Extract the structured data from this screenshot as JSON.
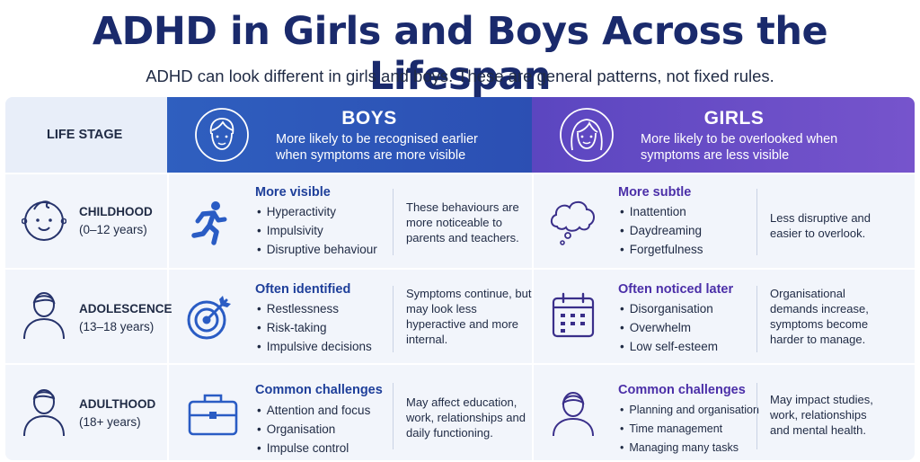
{
  "title": "ADHD in Girls and Boys Across the Lifespan",
  "subtitle": "ADHD can look different in girls and boys. These are general patterns, not fixed rules.",
  "header": {
    "life_stage": "LIFE STAGE",
    "boys": {
      "name": "BOYS",
      "desc": "More likely to be recognised earlier when symptoms are more visible",
      "icon": "boy-face-icon"
    },
    "girls": {
      "name": "GIRLS",
      "desc": "More likely to be overlooked when symptoms are less visible",
      "icon": "girl-face-icon"
    }
  },
  "rows": [
    {
      "stage": "CHILDHOOD",
      "years": "(0–12 years)",
      "icon": "baby-icon",
      "boys": {
        "icon": "running-person-icon",
        "heading": "More visible",
        "bullets": [
          "Hyperactivity",
          "Impulsivity",
          "Disruptive behaviour"
        ],
        "note": "These behaviours are more noticeable to parents and teachers."
      },
      "girls": {
        "icon": "thought-cloud-icon",
        "heading": "More subtle",
        "bullets": [
          "Inattention",
          "Daydreaming",
          "Forgetfulness"
        ],
        "note": "Less disruptive and easier to overlook."
      }
    },
    {
      "stage": "ADOLESCENCE",
      "years": "(13–18 years)",
      "icon": "teen-icon",
      "boys": {
        "icon": "target-icon",
        "heading": "Often identified",
        "bullets": [
          "Restlessness",
          "Risk-taking",
          "Impulsive decisions"
        ],
        "note": "Symptoms continue, but may look less hyperactive and more internal."
      },
      "girls": {
        "icon": "calendar-icon",
        "heading": "Often noticed later",
        "bullets": [
          "Disorganisation",
          "Overwhelm",
          "Low self-esteem"
        ],
        "note": "Organisational demands increase, symptoms become harder to manage."
      }
    },
    {
      "stage": "ADULTHOOD",
      "years": "(18+ years)",
      "icon": "adult-icon",
      "boys": {
        "icon": "briefcase-icon",
        "heading": "Common challenges",
        "bullets": [
          "Attention and focus",
          "Organisation",
          "Impulse control"
        ],
        "note": "May affect education, work, relationships and daily functioning."
      },
      "girls": {
        "icon": "woman-icon",
        "heading": "Common challenges",
        "bullets": [
          "Planning and organisation",
          "Time management",
          "Managing many tasks"
        ],
        "note": "May impact studies, work, relationships and mental health."
      }
    }
  ],
  "colors": {
    "title": "#1a2a6c",
    "boys": "#2f5fbf",
    "girls": "#6a4fc8",
    "table_bg": "#f2f5fb"
  }
}
